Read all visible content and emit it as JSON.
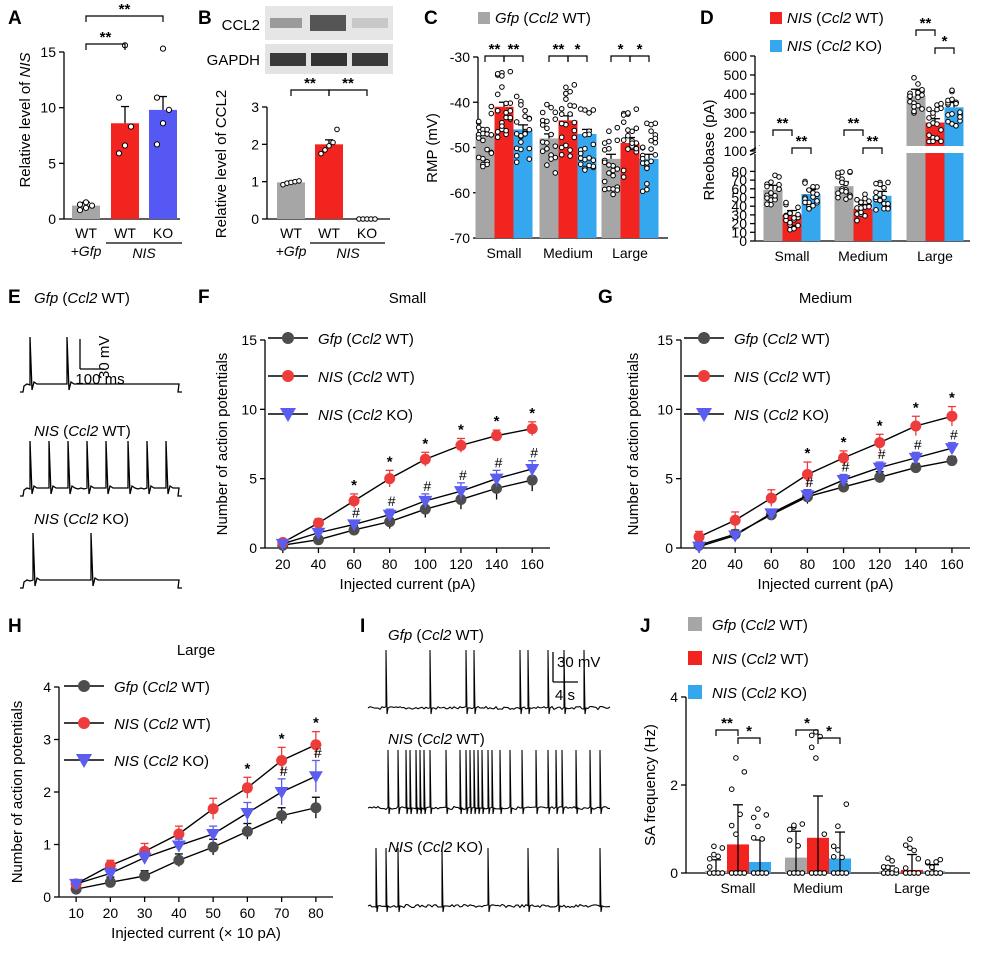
{
  "colors": {
    "gfp": "#a6a6a6",
    "nis_wt": "#f2241f",
    "nis_ko": "#5558f2",
    "nis_ko_light": "#35a7ef",
    "line_gfp": "#4d4d4d",
    "line_nis": "#ee3b3b",
    "line_ko": "#5b5cf0"
  },
  "panels": {
    "A": "A",
    "B": "B",
    "C": "C",
    "D": "D",
    "E": "E",
    "F": "F",
    "G": "G",
    "H": "H",
    "I": "I",
    "J": "J"
  },
  "legend": {
    "gfp_gene": "Gfp",
    "gfp_rest": " (",
    "ccl2": "Ccl2",
    "wt": " WT)",
    "nis_gene": "NIS",
    "ko": " KO)"
  },
  "significance": {
    "double": "**",
    "single": "*",
    "hash": "#"
  },
  "chart_data": [
    {
      "panel": "A",
      "type": "bar",
      "ylabel_prefix": "Relative level of ",
      "ylabel_gene": "NIS",
      "categories": [
        "WT",
        "WT",
        "KO"
      ],
      "group_labels": [
        "+Gfp",
        "NIS"
      ],
      "values": [
        1.2,
        8.6,
        9.8
      ],
      "errors": [
        0.3,
        1.5,
        1.2
      ],
      "points": [
        [
          0.8,
          1.0,
          1.2,
          1.3,
          1.5
        ],
        [
          5.9,
          6.6,
          8.3,
          10.9,
          15.6
        ],
        [
          6.7,
          8.6,
          9.8,
          10.9,
          15.3
        ]
      ],
      "ylim": [
        0,
        15
      ],
      "yticks": [
        0,
        5,
        10,
        15
      ],
      "sig_labels": [
        "**",
        "**"
      ]
    },
    {
      "panel": "B",
      "type": "bar",
      "blot_labels": [
        "CCL2",
        "GAPDH"
      ],
      "ylabel": "Relative level of CCL2",
      "categories": [
        "WT",
        "WT",
        "KO"
      ],
      "group_labels": [
        "+Gfp",
        "NIS"
      ],
      "values": [
        0.98,
        2.0,
        0.0
      ],
      "errors": [
        0.03,
        0.12,
        0.0
      ],
      "points": [
        [
          0.92,
          0.96,
          0.98,
          1.0,
          1.02
        ],
        [
          1.75,
          1.85,
          1.96,
          2.05,
          2.4
        ],
        [
          0,
          0,
          0,
          0,
          0
        ]
      ],
      "ylim": [
        0,
        3
      ],
      "yticks": [
        0,
        1,
        2,
        3
      ],
      "sig_labels": [
        "**",
        "**"
      ]
    },
    {
      "panel": "C",
      "type": "bar",
      "ylabel": "RMP (mV)",
      "categories": [
        "Small",
        "Medium",
        "Large"
      ],
      "series": [
        {
          "name": "Gfp (Ccl2 WT)",
          "values": [
            -47,
            -48,
            -52.5
          ],
          "errors": [
            1,
            1,
            1
          ]
        },
        {
          "name": "NIS (Ccl2 WT)",
          "values": [
            -41,
            -44,
            -49
          ],
          "errors": [
            1,
            1,
            1.2
          ]
        },
        {
          "name": "NIS (Ccl2 KO)",
          "values": [
            -46,
            -47,
            -52.5
          ],
          "errors": [
            1,
            1,
            1
          ]
        }
      ],
      "ylim": [
        -70,
        -30
      ],
      "yticks": [
        -30,
        -40,
        -50,
        -60,
        -70
      ],
      "sig_labels": [
        [
          "**",
          "**"
        ],
        [
          "**",
          "*"
        ],
        [
          "*",
          "*"
        ]
      ]
    },
    {
      "panel": "D",
      "type": "bar",
      "ylabel": "Rheobase (pA)",
      "categories": [
        "Small",
        "Medium",
        "Large"
      ],
      "series": [
        {
          "name": "Gfp (Ccl2 WT)",
          "values": [
            59,
            63,
            390
          ],
          "errors": [
            5,
            5,
            35
          ]
        },
        {
          "name": "NIS (Ccl2 WT)",
          "values": [
            30,
            37,
            250
          ],
          "errors": [
            5,
            5,
            20
          ]
        },
        {
          "name": "NIS (Ccl2 KO)",
          "values": [
            54,
            52,
            330
          ],
          "errors": [
            5,
            5,
            25
          ]
        }
      ],
      "ylim_lower": [
        0,
        100
      ],
      "ylim_upper": [
        100,
        600
      ],
      "yticks_lower": [
        0,
        10,
        20,
        30,
        40,
        50,
        60,
        70,
        80,
        100
      ],
      "yticks_upper": [
        100,
        200,
        300,
        400,
        500,
        600
      ],
      "sig_labels": [
        [
          "**",
          "**"
        ],
        [
          "**",
          "**"
        ],
        [
          "**",
          "*"
        ]
      ]
    },
    {
      "panel": "E",
      "type": "line",
      "traces": [
        "Gfp (Ccl2 WT)",
        "NIS (Ccl2 WT)",
        "NIS (Ccl2 KO)"
      ],
      "scale_v": "30 mV",
      "scale_t": "100 ms"
    },
    {
      "panel": "F",
      "type": "line",
      "title": "Small",
      "xlabel": "Injected current (pA)",
      "ylabel": "Number of action potentials",
      "x": [
        20,
        40,
        60,
        80,
        100,
        120,
        140,
        160
      ],
      "series": [
        {
          "name": "Gfp (Ccl2 WT)",
          "values": [
            0.2,
            0.6,
            1.3,
            1.9,
            2.8,
            3.5,
            4.3,
            4.9
          ],
          "errors": [
            0.1,
            0.2,
            0.3,
            0.5,
            0.6,
            0.7,
            0.8,
            0.8
          ]
        },
        {
          "name": "NIS (Ccl2 WT)",
          "values": [
            0.4,
            1.8,
            3.4,
            5.0,
            6.4,
            7.4,
            8.1,
            8.6
          ],
          "errors": [
            0.2,
            0.3,
            0.5,
            0.6,
            0.5,
            0.5,
            0.4,
            0.5
          ]
        },
        {
          "name": "NIS (Ccl2 KO)",
          "values": [
            0.3,
            1.1,
            1.7,
            2.4,
            3.4,
            4.1,
            5.0,
            5.7
          ],
          "errors": [
            0.1,
            0.2,
            0.3,
            0.4,
            0.5,
            0.6,
            0.6,
            0.6
          ]
        }
      ],
      "xlim": [
        10,
        170
      ],
      "ylim": [
        0,
        15
      ],
      "yticks": [
        0,
        5,
        10,
        15
      ],
      "stars_at": [
        60,
        80,
        100,
        120,
        140,
        160
      ],
      "hashes_at": [
        60,
        80,
        100,
        120,
        140,
        160
      ]
    },
    {
      "panel": "G",
      "type": "line",
      "title": "Medium",
      "xlabel": "Injected current (pA)",
      "ylabel": "Number of action potentials",
      "x": [
        20,
        40,
        60,
        80,
        100,
        120,
        140,
        160
      ],
      "series": [
        {
          "name": "Gfp (Ccl2 WT)",
          "values": [
            0.2,
            1.0,
            2.4,
            3.7,
            4.4,
            5.1,
            5.8,
            6.3
          ],
          "errors": [
            0.2,
            0.3,
            0.4,
            0.5,
            0.4,
            0.4,
            0.3,
            0.3
          ]
        },
        {
          "name": "NIS (Ccl2 WT)",
          "values": [
            0.8,
            2.0,
            3.6,
            5.3,
            6.5,
            7.6,
            8.8,
            9.5
          ],
          "errors": [
            0.4,
            0.6,
            0.6,
            0.9,
            0.5,
            0.6,
            0.7,
            0.7
          ]
        },
        {
          "name": "NIS (Ccl2 KO)",
          "values": [
            0.1,
            0.9,
            2.5,
            3.8,
            4.9,
            5.8,
            6.5,
            7.2
          ],
          "errors": [
            0.1,
            0.2,
            0.3,
            0.4,
            0.4,
            0.4,
            0.4,
            0.4
          ]
        }
      ],
      "xlim": [
        10,
        170
      ],
      "ylim": [
        0,
        15
      ],
      "yticks": [
        0,
        5,
        10,
        15
      ],
      "stars_at": [
        80,
        100,
        120,
        140,
        160
      ],
      "hashes_at": [
        80,
        100,
        120,
        140,
        160
      ]
    },
    {
      "panel": "H",
      "type": "line",
      "title": "Large",
      "xlabel": "Injected current (× 10 pA)",
      "ylabel": "Number of action potentials",
      "x": [
        10,
        20,
        30,
        40,
        50,
        60,
        70,
        80
      ],
      "series": [
        {
          "name": "Gfp (Ccl2 WT)",
          "values": [
            0.15,
            0.28,
            0.4,
            0.7,
            0.95,
            1.25,
            1.55,
            1.7
          ],
          "errors": [
            0.05,
            0.1,
            0.1,
            0.12,
            0.15,
            0.15,
            0.15,
            0.2
          ]
        },
        {
          "name": "NIS (Ccl2 WT)",
          "values": [
            0.25,
            0.6,
            0.87,
            1.2,
            1.68,
            2.08,
            2.6,
            2.9
          ],
          "errors": [
            0.05,
            0.1,
            0.15,
            0.15,
            0.2,
            0.2,
            0.25,
            0.25
          ]
        },
        {
          "name": "NIS (Ccl2 KO)",
          "values": [
            0.25,
            0.45,
            0.75,
            0.98,
            1.2,
            1.6,
            2.0,
            2.3
          ],
          "errors": [
            0.05,
            0.1,
            0.12,
            0.12,
            0.15,
            0.2,
            0.25,
            0.3
          ]
        }
      ],
      "xlim": [
        5,
        85
      ],
      "ylim": [
        0,
        4
      ],
      "yticks": [
        0,
        1,
        2,
        3,
        4
      ],
      "stars_at": [
        60,
        70,
        80
      ],
      "hashes_at": [
        70,
        80
      ]
    },
    {
      "panel": "I",
      "type": "line",
      "traces": [
        "Gfp (Ccl2 WT)",
        "NIS (Ccl2 WT)",
        "NIS (Ccl2 KO)"
      ],
      "scale_v": "30 mV",
      "scale_t": "4 s"
    },
    {
      "panel": "J",
      "type": "bar",
      "ylabel": "SA frequency (Hz)",
      "categories": [
        "Small",
        "Medium",
        "Large"
      ],
      "series": [
        {
          "name": "Gfp (Ccl2 WT)",
          "values": [
            0.05,
            0.35,
            0.04
          ],
          "errors": [
            0.25,
            0.6,
            0.12
          ]
        },
        {
          "name": "NIS (Ccl2 WT)",
          "values": [
            0.65,
            0.8,
            0.07
          ],
          "errors": [
            0.9,
            0.95,
            0.35
          ]
        },
        {
          "name": "NIS (Ccl2 KO)",
          "values": [
            0.25,
            0.33,
            0.04
          ],
          "errors": [
            0.5,
            0.6,
            0.15
          ]
        }
      ],
      "ylim": [
        0,
        4
      ],
      "yticks": [
        0,
        2,
        4
      ],
      "sig_labels": [
        [
          "**",
          "*"
        ],
        [
          "*",
          "*"
        ]
      ]
    }
  ]
}
